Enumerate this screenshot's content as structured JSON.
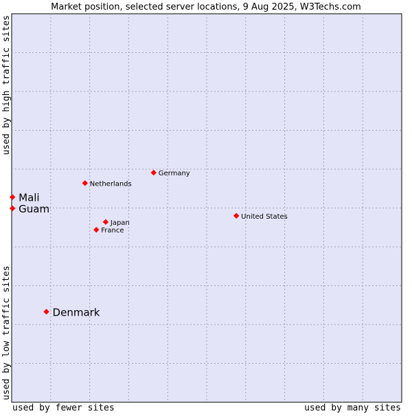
{
  "chart_data": {
    "type": "scatter",
    "title": "Market position, selected server locations, 9 Aug 2025, W3Techs.com",
    "xlabel_left": "used by fewer sites",
    "xlabel_right": "used by many sites",
    "ylabel_bottom": "used by low traffic sites",
    "ylabel_top": "used by high traffic sites",
    "xlim": [
      0,
      100
    ],
    "ylim": [
      0,
      100
    ],
    "grid": true,
    "colors": {
      "plot_background": "#e4e4f8",
      "marker": "#ff0000",
      "grid": "#a0a0b8",
      "frame": "#000000"
    },
    "points": [
      {
        "name": "Germany",
        "x": 36.4,
        "y": 59.1,
        "highlight": false
      },
      {
        "name": "Netherlands",
        "x": 18.8,
        "y": 56.4,
        "highlight": false
      },
      {
        "name": "Mali",
        "x": 0.2,
        "y": 52.8,
        "highlight": true
      },
      {
        "name": "Guam",
        "x": 0.2,
        "y": 49.9,
        "highlight": true
      },
      {
        "name": "United States",
        "x": 57.6,
        "y": 48.0,
        "highlight": false
      },
      {
        "name": "Japan",
        "x": 24.1,
        "y": 46.4,
        "highlight": false
      },
      {
        "name": "France",
        "x": 21.7,
        "y": 44.4,
        "highlight": false
      },
      {
        "name": "Denmark",
        "x": 8.9,
        "y": 23.3,
        "highlight": true
      }
    ]
  }
}
